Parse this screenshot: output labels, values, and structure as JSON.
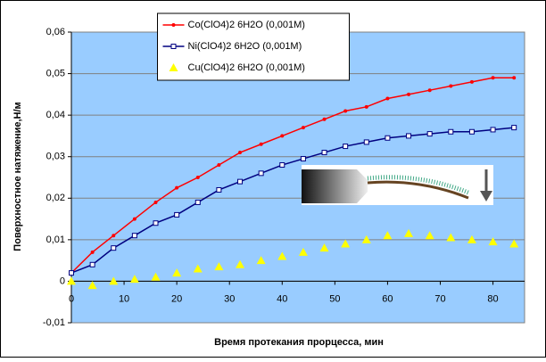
{
  "chart_data": {
    "type": "line",
    "x_label": "Время протекания прорцесса, мин",
    "y_label": "Поверхностное натяжение,Н/м",
    "x": [
      0,
      4,
      8,
      12,
      16,
      20,
      24,
      28,
      32,
      36,
      40,
      44,
      48,
      52,
      56,
      60,
      64,
      68,
      72,
      76,
      80,
      84
    ],
    "series": [
      {
        "name": "Co(ClO4)2 6H2O (0,001M)",
        "color": "#ff0000",
        "marker": "circle",
        "values": [
          0.002,
          0.007,
          0.011,
          0.015,
          0.019,
          0.0225,
          0.025,
          0.028,
          0.031,
          0.033,
          0.035,
          0.037,
          0.039,
          0.041,
          0.042,
          0.044,
          0.045,
          0.046,
          0.047,
          0.048,
          0.049,
          0.049
        ]
      },
      {
        "name": "Ni(ClO4)2 6H2O (0,001M)",
        "color": "#000080",
        "marker": "square",
        "values": [
          0.002,
          0.004,
          0.008,
          0.011,
          0.014,
          0.016,
          0.019,
          0.022,
          0.024,
          0.026,
          0.028,
          0.0295,
          0.031,
          0.0325,
          0.0335,
          0.0345,
          0.035,
          0.0355,
          0.036,
          0.036,
          0.0365,
          0.037
        ]
      },
      {
        "name": "Cu(ClO4)2 6H2O (0,001M)",
        "color": "#ffff00",
        "marker": "triangle",
        "values": [
          0,
          -0.001,
          0,
          0.0005,
          0.001,
          0.002,
          0.003,
          0.0035,
          0.004,
          0.005,
          0.006,
          0.007,
          0.008,
          0.009,
          0.01,
          0.011,
          0.0115,
          0.011,
          0.0105,
          0.01,
          0.0095,
          0.009
        ]
      }
    ],
    "xlim": [
      0,
      86
    ],
    "xticks": [
      0,
      10,
      20,
      30,
      40,
      50,
      60,
      70,
      80
    ],
    "ylim": [
      -0.01,
      0.06
    ],
    "yticks": [
      {
        "value": -0.01,
        "label": "-0,01"
      },
      0,
      {
        "value": 0.01,
        "label": "0,01"
      },
      {
        "value": 0.02,
        "label": "0,02"
      },
      {
        "value": 0.03,
        "label": "0,03"
      },
      {
        "value": 0.04,
        "label": "0,04"
      },
      {
        "value": 0.05,
        "label": "0,05"
      },
      {
        "value": 0.06,
        "label": "0,06"
      }
    ],
    "grid": true,
    "legend": "top-center",
    "plot_background": "#99ccff"
  }
}
